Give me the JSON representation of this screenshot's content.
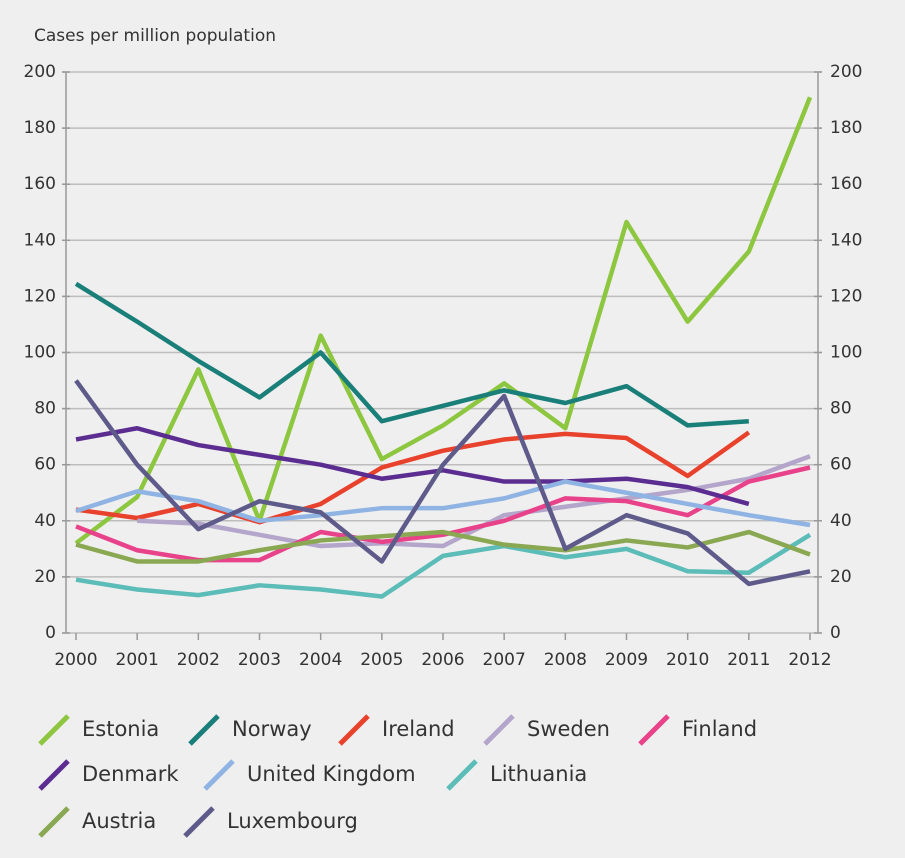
{
  "chart_data": {
    "type": "line",
    "y_axis_label": "Cases per million population",
    "categories": [
      "2000",
      "2001",
      "2002",
      "2003",
      "2004",
      "2005",
      "2006",
      "2007",
      "2008",
      "2009",
      "2010",
      "2011",
      "2012"
    ],
    "ylim": [
      0,
      200
    ],
    "yticks": [
      0,
      20,
      40,
      60,
      80,
      100,
      120,
      140,
      160,
      180,
      200
    ],
    "y2lim": [
      0,
      200
    ],
    "y2ticks": [
      0,
      20,
      40,
      60,
      80,
      100,
      120,
      140,
      160,
      180,
      200
    ],
    "grid": true,
    "series": [
      {
        "name": "Estonia",
        "color": "#8dc63f",
        "values": [
          32,
          48.5,
          94,
          40,
          106,
          62,
          74,
          89,
          73,
          146.5,
          111,
          136,
          191
        ]
      },
      {
        "name": "Norway",
        "color": "#1b7f79",
        "values": [
          124.5,
          111,
          97,
          84,
          100,
          75.5,
          81,
          86.5,
          82,
          88,
          74,
          75.5,
          null
        ]
      },
      {
        "name": "Ireland",
        "color": "#e8412c",
        "values": [
          44,
          41,
          46,
          39.5,
          46,
          59,
          65,
          69,
          71,
          69.5,
          56,
          71.5,
          null
        ]
      },
      {
        "name": "Sweden",
        "color": "#b3a6ca",
        "values": [
          null,
          40,
          39,
          35,
          31,
          32,
          31,
          42,
          45,
          48,
          51,
          55,
          63
        ]
      },
      {
        "name": "Finland",
        "color": "#e8428a",
        "values": [
          38,
          29.5,
          26,
          26,
          36,
          32.5,
          35,
          40,
          48,
          47,
          42,
          54,
          59
        ]
      },
      {
        "name": "Denmark",
        "color": "#5c2d91",
        "values": [
          69,
          73,
          67,
          63.5,
          60,
          55,
          58,
          54,
          54,
          55,
          52,
          46,
          null
        ]
      },
      {
        "name": "United Kingdom",
        "color": "#8fb4e3",
        "values": [
          43.5,
          50.5,
          47,
          40,
          42,
          44.5,
          44.5,
          48,
          54,
          50,
          46,
          42,
          38.5
        ]
      },
      {
        "name": "Lithuania",
        "color": "#5bbcb8",
        "values": [
          19,
          15.5,
          13.5,
          17,
          15.5,
          13,
          27.5,
          31,
          27,
          30,
          22,
          21.5,
          35
        ]
      },
      {
        "name": "Austria",
        "color": "#8aa852",
        "values": [
          31.5,
          25.5,
          25.5,
          29.5,
          33,
          34.5,
          36,
          31.5,
          29.5,
          33,
          30.5,
          36,
          28
        ]
      },
      {
        "name": "Luxembourg",
        "color": "#5e5a8a",
        "values": [
          90,
          60,
          37,
          47,
          43,
          25.5,
          60,
          84.5,
          30,
          42,
          35.5,
          17.5,
          22
        ]
      }
    ]
  }
}
